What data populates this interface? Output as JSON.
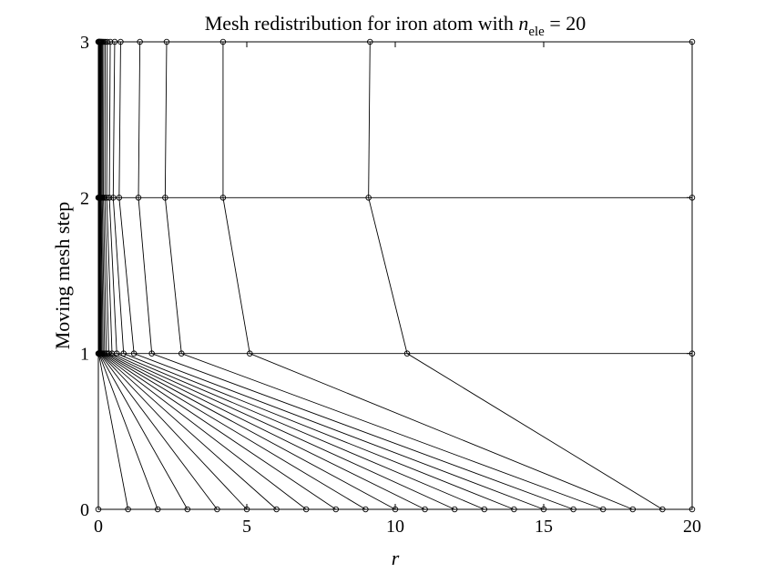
{
  "chart_data": {
    "type": "line",
    "title": {
      "prefix": "Mesh redistribution for iron atom with ",
      "math_var": "n",
      "math_sub": "ele",
      "math_suffix": " = 20"
    },
    "xlabel": "r",
    "ylabel": "Moving mesh step",
    "xlim": [
      0,
      20
    ],
    "ylim": [
      0,
      3
    ],
    "xticks": [
      0,
      5,
      10,
      15,
      20
    ],
    "yticks": [
      0,
      1,
      2,
      3
    ],
    "grid": "horizontal lines at integer steps",
    "marker": "open circle",
    "color": "#000000",
    "steps": [
      0,
      1,
      2,
      3
    ],
    "node_paths": [
      [
        0,
        0,
        0,
        0
      ],
      [
        1,
        0.01,
        0.01,
        0.01
      ],
      [
        2,
        0.02,
        0.02,
        0.02
      ],
      [
        3,
        0.03,
        0.03,
        0.03
      ],
      [
        4,
        0.05,
        0.04,
        0.04
      ],
      [
        5,
        0.07,
        0.05,
        0.05
      ],
      [
        6,
        0.09,
        0.06,
        0.07
      ],
      [
        7,
        0.12,
        0.08,
        0.09
      ],
      [
        8,
        0.16,
        0.1,
        0.11
      ],
      [
        9,
        0.21,
        0.13,
        0.14
      ],
      [
        10,
        0.27,
        0.17,
        0.18
      ],
      [
        11,
        0.35,
        0.22,
        0.23
      ],
      [
        12,
        0.46,
        0.28,
        0.3
      ],
      [
        13,
        0.62,
        0.37,
        0.4
      ],
      [
        14,
        0.85,
        0.5,
        0.55
      ],
      [
        15,
        1.2,
        0.7,
        0.75
      ],
      [
        16,
        1.8,
        1.35,
        1.4
      ],
      [
        17,
        2.8,
        2.25,
        2.3
      ],
      [
        18,
        5.1,
        4.2,
        4.2
      ],
      [
        19,
        10.4,
        9.1,
        9.15
      ],
      [
        20,
        20,
        20,
        20
      ]
    ]
  }
}
